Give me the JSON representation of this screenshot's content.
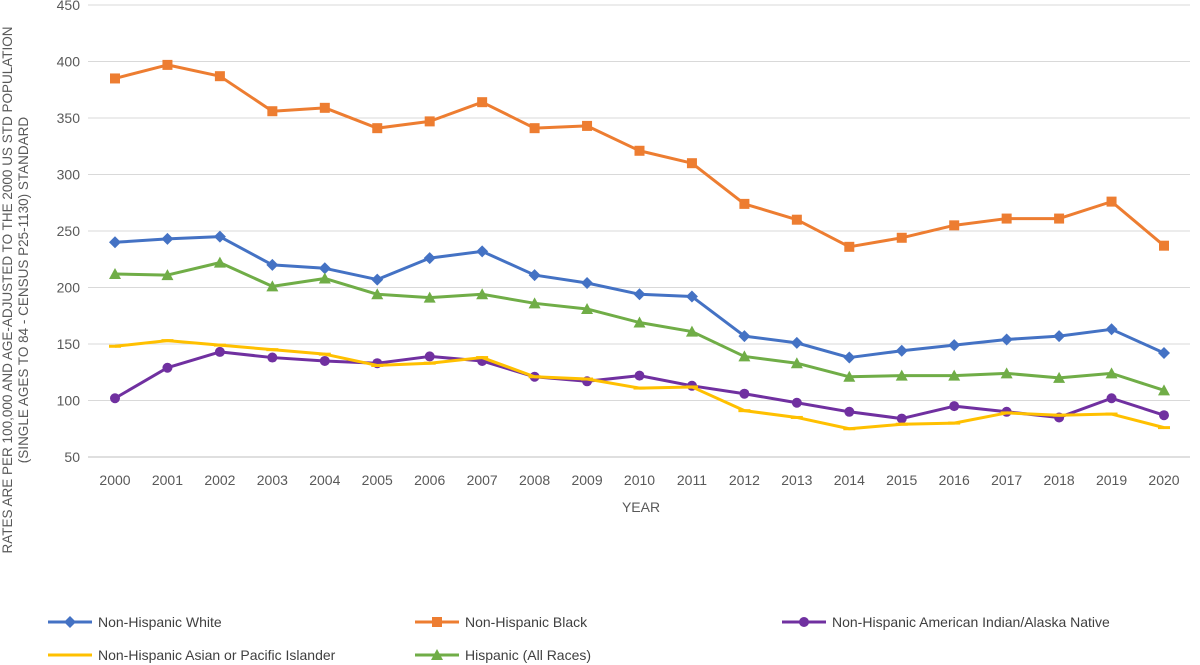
{
  "chart_data": {
    "type": "line",
    "title": "",
    "xlabel": "YEAR",
    "ylabel": "RATES ARE PER 100,000 AND AGE-ADJUSTED TO THE 2000 US STD POPULATION (SINGLE AGES TO 84 - CENSUS P25-1130) STANDARD",
    "ylabel_lines": [
      "RATES ARE PER 100,000 AND AGE-ADJUSTED TO THE 2000 US STD POPULATION",
      "(SINGLE AGES TO 84 - CENSUS P25-1130) STANDARD"
    ],
    "ylim": [
      50,
      450
    ],
    "yticks": [
      50,
      100,
      150,
      200,
      250,
      300,
      350,
      400,
      450
    ],
    "grid": true,
    "legend_position": "bottom",
    "x": [
      2000,
      2001,
      2002,
      2003,
      2004,
      2005,
      2006,
      2007,
      2008,
      2009,
      2010,
      2011,
      2012,
      2013,
      2014,
      2015,
      2016,
      2017,
      2018,
      2019,
      2020
    ],
    "series": [
      {
        "name": "Non-Hispanic White",
        "color": "#4472C4",
        "marker": "diamond",
        "values": [
          240,
          243,
          245,
          220,
          217,
          207,
          226,
          232,
          211,
          204,
          194,
          192,
          157,
          151,
          138,
          144,
          149,
          154,
          157,
          163,
          142
        ]
      },
      {
        "name": "Non-Hispanic Black",
        "color": "#ED7D31",
        "marker": "square",
        "values": [
          385,
          397,
          387,
          356,
          359,
          341,
          347,
          364,
          341,
          343,
          321,
          310,
          274,
          260,
          236,
          244,
          255,
          261,
          261,
          276,
          237
        ]
      },
      {
        "name": "Non-Hispanic American Indian/Alaska Native",
        "color": "#7030A0",
        "marker": "circle",
        "values": [
          102,
          129,
          143,
          138,
          135,
          133,
          139,
          135,
          121,
          117,
          122,
          113,
          106,
          98,
          90,
          84,
          95,
          90,
          85,
          102,
          87
        ]
      },
      {
        "name": "Non-Hispanic Asian or Pacific Islander",
        "color": "#FFC000",
        "marker": "dash",
        "values": [
          148,
          153,
          149,
          145,
          141,
          131,
          133,
          138,
          121,
          119,
          111,
          112,
          91,
          85,
          75,
          79,
          80,
          89,
          87,
          88,
          76
        ]
      },
      {
        "name": "Hispanic (All Races)",
        "color": "#70AD47",
        "marker": "triangle",
        "values": [
          212,
          211,
          222,
          201,
          208,
          194,
          191,
          194,
          186,
          181,
          169,
          161,
          139,
          133,
          121,
          122,
          122,
          124,
          120,
          124,
          109
        ]
      }
    ]
  }
}
